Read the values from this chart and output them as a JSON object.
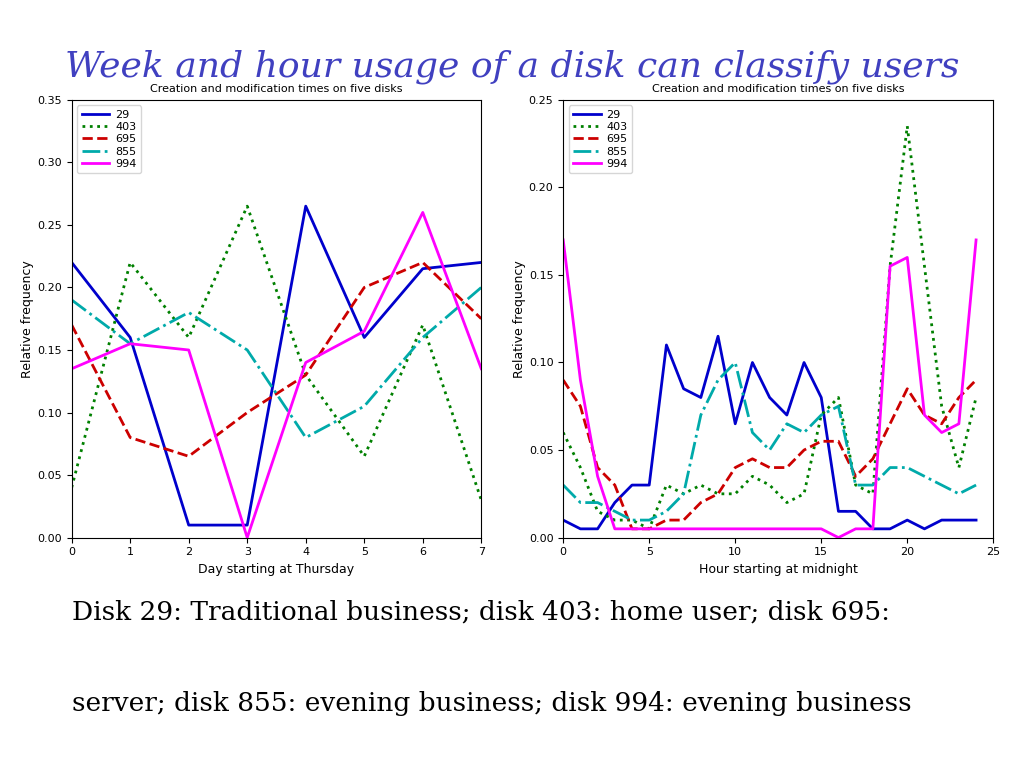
{
  "title": "Week and hour usage of a disk can classify users",
  "title_color": "#4040c0",
  "subtitle": "Creation and modification times on five disks",
  "bottom_text_line1": "Disk 29: Traditional business; disk 403: home user; disk 695:",
  "bottom_text_line2": "server; disk 855: evening business; disk 994: evening business",
  "plot1": {
    "xlabel": "Day starting at Thursday",
    "ylabel": "Relative frequency",
    "xlim": [
      0,
      7
    ],
    "ylim": [
      0,
      0.35
    ],
    "yticks": [
      0,
      0.05,
      0.1,
      0.15,
      0.2,
      0.25,
      0.3,
      0.35
    ],
    "xticks": [
      0,
      1,
      2,
      3,
      4,
      5,
      6,
      7
    ],
    "series": {
      "29": {
        "x": [
          0,
          1,
          2,
          3,
          4,
          5,
          6,
          7
        ],
        "y": [
          0.22,
          0.16,
          0.01,
          0.01,
          0.265,
          0.16,
          0.215,
          0.22
        ],
        "color": "#0000cc",
        "linestyle": "-",
        "linewidth": 2.0
      },
      "403": {
        "x": [
          0,
          1,
          2,
          3,
          4,
          5,
          6,
          7
        ],
        "y": [
          0.04,
          0.22,
          0.16,
          0.265,
          0.13,
          0.065,
          0.17,
          0.03
        ],
        "color": "#008000",
        "linestyle": ":",
        "linewidth": 2.0
      },
      "695": {
        "x": [
          0,
          1,
          2,
          3,
          4,
          5,
          6,
          7
        ],
        "y": [
          0.17,
          0.08,
          0.065,
          0.1,
          0.13,
          0.2,
          0.22,
          0.175
        ],
        "color": "#cc0000",
        "linestyle": "--",
        "linewidth": 2.0
      },
      "855": {
        "x": [
          0,
          1,
          2,
          3,
          4,
          5,
          6,
          7
        ],
        "y": [
          0.19,
          0.155,
          0.18,
          0.15,
          0.08,
          0.105,
          0.16,
          0.2
        ],
        "color": "#00aaaa",
        "linestyle": "-.",
        "linewidth": 2.0
      },
      "994": {
        "x": [
          0,
          1,
          2,
          3,
          4,
          5,
          6,
          7
        ],
        "y": [
          0.135,
          0.155,
          0.15,
          0.0,
          0.14,
          0.165,
          0.26,
          0.135
        ],
        "color": "#ff00ff",
        "linestyle": "-",
        "linewidth": 2.0
      }
    }
  },
  "plot2": {
    "xlabel": "Hour starting at midnight",
    "ylabel": "Relative frequency",
    "xlim": [
      0,
      25
    ],
    "ylim": [
      0,
      0.25
    ],
    "yticks": [
      0,
      0.05,
      0.1,
      0.15,
      0.2,
      0.25
    ],
    "xticks": [
      0,
      5,
      10,
      15,
      20,
      25
    ],
    "series": {
      "29": {
        "x": [
          0,
          1,
          2,
          3,
          4,
          5,
          6,
          7,
          8,
          9,
          10,
          11,
          12,
          13,
          14,
          15,
          16,
          17,
          18,
          19,
          20,
          21,
          22,
          23,
          24
        ],
        "y": [
          0.01,
          0.005,
          0.005,
          0.02,
          0.03,
          0.03,
          0.11,
          0.085,
          0.08,
          0.115,
          0.065,
          0.1,
          0.08,
          0.07,
          0.1,
          0.08,
          0.015,
          0.015,
          0.005,
          0.005,
          0.01,
          0.005,
          0.01,
          0.01,
          0.01
        ],
        "color": "#0000cc",
        "linestyle": "-",
        "linewidth": 2.0
      },
      "403": {
        "x": [
          0,
          1,
          2,
          3,
          4,
          5,
          6,
          7,
          8,
          9,
          10,
          11,
          12,
          13,
          14,
          15,
          16,
          17,
          18,
          19,
          20,
          21,
          22,
          23,
          24
        ],
        "y": [
          0.06,
          0.04,
          0.015,
          0.01,
          0.01,
          0.005,
          0.03,
          0.025,
          0.03,
          0.025,
          0.025,
          0.035,
          0.03,
          0.02,
          0.025,
          0.07,
          0.08,
          0.03,
          0.025,
          0.155,
          0.235,
          0.155,
          0.075,
          0.04,
          0.08
        ],
        "color": "#008000",
        "linestyle": ":",
        "linewidth": 2.0
      },
      "695": {
        "x": [
          0,
          1,
          2,
          3,
          4,
          5,
          6,
          7,
          8,
          9,
          10,
          11,
          12,
          13,
          14,
          15,
          16,
          17,
          18,
          19,
          20,
          21,
          22,
          23,
          24
        ],
        "y": [
          0.09,
          0.075,
          0.04,
          0.03,
          0.005,
          0.005,
          0.01,
          0.01,
          0.02,
          0.025,
          0.04,
          0.045,
          0.04,
          0.04,
          0.05,
          0.055,
          0.055,
          0.035,
          0.045,
          0.065,
          0.085,
          0.07,
          0.065,
          0.08,
          0.09
        ],
        "color": "#cc0000",
        "linestyle": "--",
        "linewidth": 2.0
      },
      "855": {
        "x": [
          0,
          1,
          2,
          3,
          4,
          5,
          6,
          7,
          8,
          9,
          10,
          11,
          12,
          13,
          14,
          15,
          16,
          17,
          18,
          19,
          20,
          21,
          22,
          23,
          24
        ],
        "y": [
          0.03,
          0.02,
          0.02,
          0.015,
          0.01,
          0.01,
          0.015,
          0.025,
          0.07,
          0.09,
          0.1,
          0.06,
          0.05,
          0.065,
          0.06,
          0.07,
          0.075,
          0.03,
          0.03,
          0.04,
          0.04,
          0.035,
          0.03,
          0.025,
          0.03
        ],
        "color": "#00aaaa",
        "linestyle": "-.",
        "linewidth": 2.0
      },
      "994": {
        "x": [
          0,
          1,
          2,
          3,
          4,
          5,
          6,
          7,
          8,
          9,
          10,
          11,
          12,
          13,
          14,
          15,
          16,
          17,
          18,
          19,
          20,
          21,
          22,
          23,
          24
        ],
        "y": [
          0.17,
          0.09,
          0.035,
          0.005,
          0.005,
          0.005,
          0.005,
          0.005,
          0.005,
          0.005,
          0.005,
          0.005,
          0.005,
          0.005,
          0.005,
          0.005,
          0.0,
          0.005,
          0.005,
          0.155,
          0.16,
          0.07,
          0.06,
          0.065,
          0.17
        ],
        "color": "#ff00ff",
        "linestyle": "-",
        "linewidth": 2.0
      }
    }
  },
  "background_color": "#ffffff",
  "legend_labels": [
    "29",
    "403",
    "695",
    "855",
    "994"
  ],
  "legend_colors": [
    "#0000cc",
    "#008000",
    "#cc0000",
    "#00aaaa",
    "#ff00ff"
  ],
  "legend_linestyles": [
    "-",
    ":",
    "--",
    "-.",
    "-"
  ]
}
